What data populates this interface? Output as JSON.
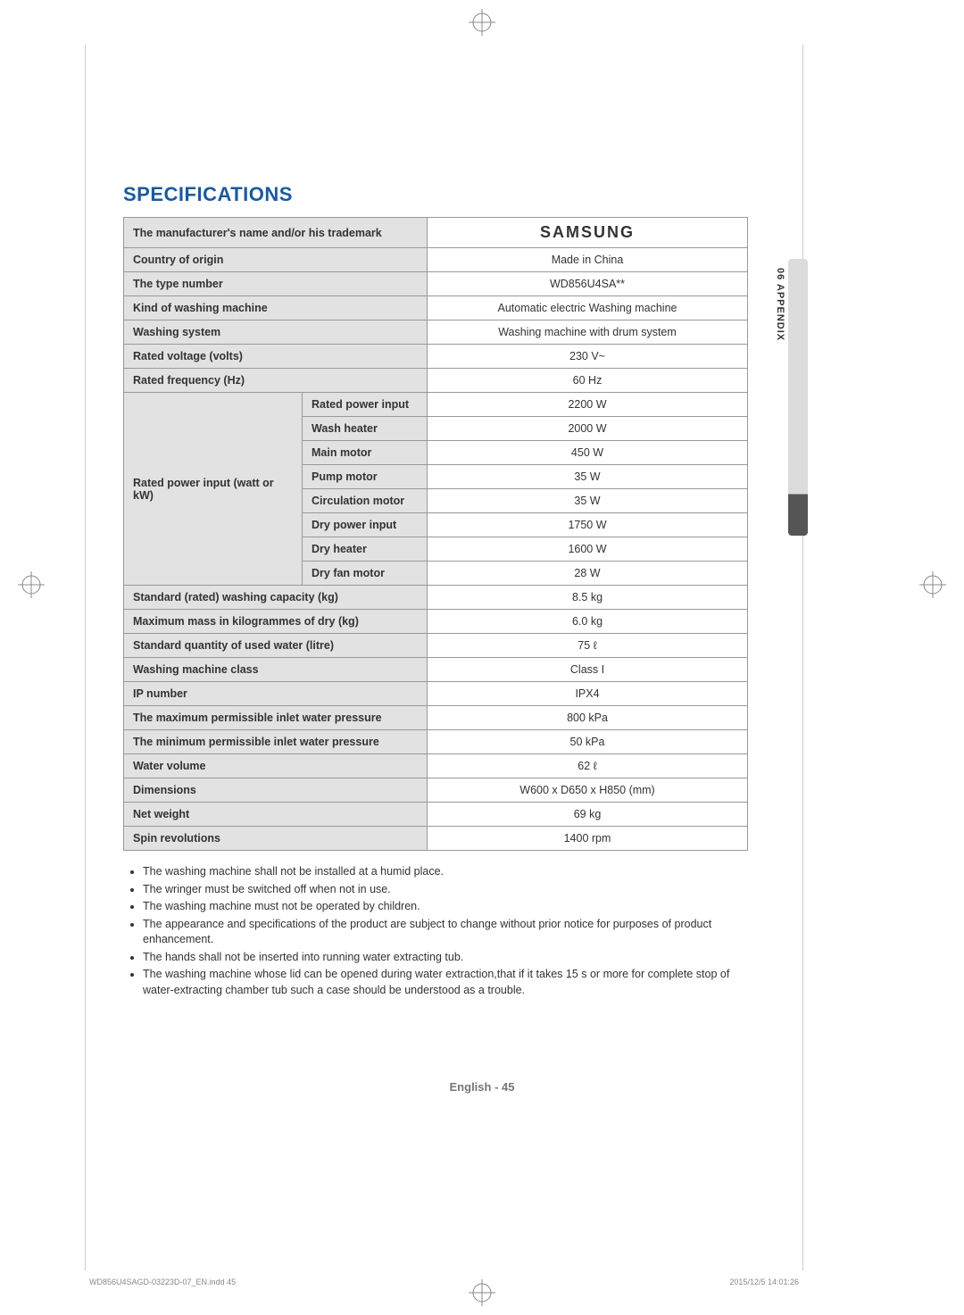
{
  "heading": "SPECIFICATIONS",
  "side_tab": "06 APPENDIX",
  "brand": "SAMSUNG",
  "table": {
    "rows": [
      {
        "label": "The manufacturer's name and/or his trademark",
        "value": "__BRAND__"
      },
      {
        "label": "Country of origin",
        "value": "Made in China"
      },
      {
        "label": "The type number",
        "value": "WD856U4SA**"
      },
      {
        "label": "Kind of washing machine",
        "value": "Automatic electric Washing machine"
      },
      {
        "label": "Washing system",
        "value": "Washing machine with drum system"
      },
      {
        "label": "Rated voltage (volts)",
        "value": "230 V~"
      },
      {
        "label": "Rated frequency (Hz)",
        "value": "60 Hz"
      }
    ],
    "power_group_label": "Rated power input (watt or kW)",
    "power_rows": [
      {
        "sub": "Rated power input",
        "value": "2200 W"
      },
      {
        "sub": "Wash heater",
        "value": "2000 W"
      },
      {
        "sub": "Main motor",
        "value": "450 W"
      },
      {
        "sub": "Pump motor",
        "value": "35 W"
      },
      {
        "sub": "Circulation motor",
        "value": "35 W"
      },
      {
        "sub": "Dry power input",
        "value": "1750 W"
      },
      {
        "sub": "Dry heater",
        "value": "1600 W"
      },
      {
        "sub": "Dry fan motor",
        "value": "28 W"
      }
    ],
    "tail_rows": [
      {
        "label": "Standard (rated) washing capacity (kg)",
        "value": "8.5 kg"
      },
      {
        "label": "Maximum mass in kilogrammes of dry (kg)",
        "value": "6.0 kg"
      },
      {
        "label": "Standard quantity of used water (litre)",
        "value": "75 ℓ"
      },
      {
        "label": "Washing machine class",
        "value": "Class I"
      },
      {
        "label": "IP number",
        "value": "IPX4"
      },
      {
        "label": "The maximum permissible inlet water pressure",
        "value": "800 kPa"
      },
      {
        "label": "The minimum permissible inlet water pressure",
        "value": "50 kPa"
      },
      {
        "label": "Water volume",
        "value": "62 ℓ"
      },
      {
        "label": "Dimensions",
        "value": "W600 x D650 x H850 (mm)"
      },
      {
        "label": "Net weight",
        "value": "69 kg"
      },
      {
        "label": "Spin revolutions",
        "value": "1400 rpm"
      }
    ]
  },
  "notes": [
    "The washing machine shall not be installed at a humid place.",
    "The wringer must be switched off when not in use.",
    "The washing machine must not be operated by children.",
    "The appearance and specifications of the product are subject to change without prior notice for purposes of product enhancement.",
    "The hands shall not be inserted into running water extracting tub.",
    "The washing machine whose lid can be opened during water extraction,that if it takes 15 s or more for complete stop of water-extracting chamber tub such a case should be understood as a trouble."
  ],
  "footer_page": "English - 45",
  "indd_left": "WD856U4SAGD-03223D-07_EN.indd   45",
  "indd_right": "2015/12/5   14:01:26",
  "colors": {
    "heading": "#1a5a9e",
    "row_bg": "#e2e2e2",
    "border": "#999999"
  }
}
